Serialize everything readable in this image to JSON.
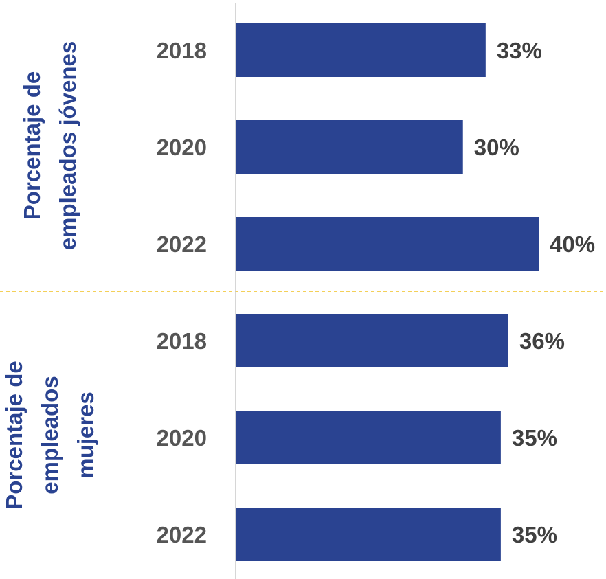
{
  "chart_data": {
    "type": "bar",
    "orientation": "horizontal",
    "xlim": [
      0,
      45
    ],
    "grid": false,
    "value_suffix": "%",
    "colors": {
      "bar": "#2A4391",
      "group_label": "#2A4391",
      "category_label": "#555555",
      "value_label": "#404040",
      "axis_line": "#c8c8c8",
      "separator": "#F0C020"
    },
    "groups": [
      {
        "label_lines": [
          "Porcentaje de",
          "empleados jóvenes"
        ],
        "categories": [
          "2018",
          "2020",
          "2022"
        ],
        "values": [
          33,
          30,
          40
        ]
      },
      {
        "label_lines": [
          "Porcentaje de",
          "empleados",
          "mujeres"
        ],
        "categories": [
          "2018",
          "2020",
          "2022"
        ],
        "values": [
          36,
          35,
          35
        ]
      }
    ]
  }
}
